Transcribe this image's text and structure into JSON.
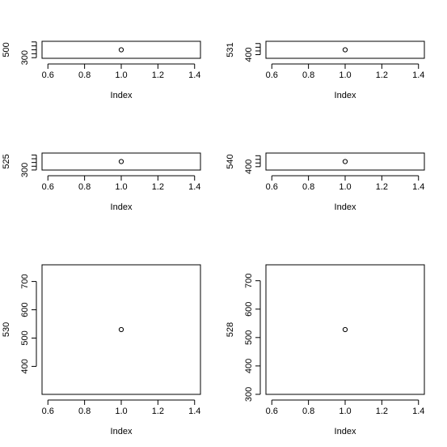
{
  "chart_data": [
    {
      "type": "scatter",
      "xlabel": "Index",
      "ylabel": "500",
      "x": [
        1
      ],
      "y": [
        500
      ],
      "xlim": [
        0.568,
        1.432
      ],
      "ylim": [
        284,
        716
      ],
      "xticks": [
        0.6,
        0.8,
        {
          "value": 1.0,
          "label": "1.0"
        },
        1.2,
        1.4
      ],
      "yticks": [
        300
      ],
      "yminor": [
        400,
        500,
        600,
        700
      ]
    },
    {
      "type": "scatter",
      "xlabel": "Index",
      "ylabel": "531",
      "x": [
        1
      ],
      "y": [
        531
      ],
      "xlim": [
        0.568,
        1.432
      ],
      "ylim": [
        301.608,
        760.392
      ],
      "xticks": [
        0.6,
        0.8,
        {
          "value": 1.0,
          "label": "1.0"
        },
        1.2,
        1.4
      ],
      "yticks": [
        400
      ],
      "yminor": [
        500,
        600,
        700
      ]
    },
    {
      "type": "scatter",
      "xlabel": "Index",
      "ylabel": "525",
      "x": [
        1
      ],
      "y": [
        525
      ],
      "xlim": [
        0.568,
        1.432
      ],
      "ylim": [
        298.2,
        751.8
      ],
      "xticks": [
        0.6,
        0.8,
        {
          "value": 1.0,
          "label": "1.0"
        },
        1.2,
        1.4
      ],
      "yticks": [
        300
      ],
      "yminor": [
        400,
        500,
        600,
        700
      ]
    },
    {
      "type": "scatter",
      "xlabel": "Index",
      "ylabel": "540",
      "x": [
        1
      ],
      "y": [
        540
      ],
      "xlim": [
        0.568,
        1.432
      ],
      "ylim": [
        306.72,
        773.28
      ],
      "xticks": [
        0.6,
        0.8,
        {
          "value": 1.0,
          "label": "1.0"
        },
        1.2,
        1.4
      ],
      "yticks": [
        400
      ],
      "yminor": [
        500,
        600,
        700
      ]
    },
    {
      "type": "scatter",
      "xlabel": "Index",
      "ylabel": "530",
      "x": [
        1
      ],
      "y": [
        530
      ],
      "xlim": [
        0.568,
        1.432
      ],
      "ylim": [
        301.04,
        758.96
      ],
      "xticks": [
        0.6,
        0.8,
        {
          "value": 1.0,
          "label": "1.0"
        },
        1.2,
        1.4
      ],
      "yticks": [
        400,
        500,
        600,
        700
      ],
      "yminor": []
    },
    {
      "type": "scatter",
      "xlabel": "Index",
      "ylabel": "528",
      "x": [
        1
      ],
      "y": [
        528
      ],
      "xlim": [
        0.568,
        1.432
      ],
      "ylim": [
        299.904,
        756.096
      ],
      "xticks": [
        0.6,
        0.8,
        {
          "value": 1.0,
          "label": "1.0"
        },
        1.2,
        1.4
      ],
      "yticks": [
        300,
        400,
        500,
        600,
        700
      ],
      "yminor": []
    }
  ]
}
